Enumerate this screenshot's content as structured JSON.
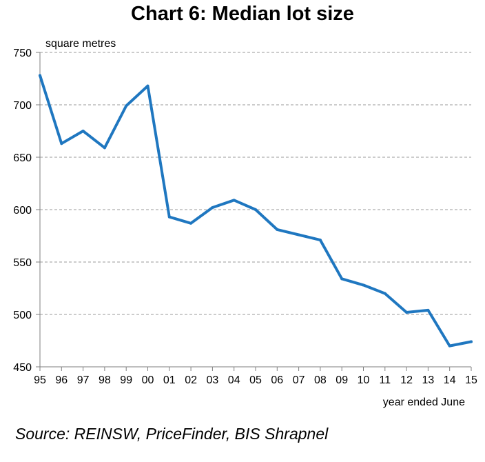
{
  "chart_data": {
    "type": "line",
    "title": "Chart 6: Median lot size",
    "ylabel": "square metres",
    "xlabel": "year ended June",
    "ylim": [
      450,
      750
    ],
    "yticks": [
      450,
      500,
      550,
      600,
      650,
      700,
      750
    ],
    "grid": true,
    "categories": [
      "95",
      "96",
      "97",
      "98",
      "99",
      "00",
      "01",
      "02",
      "03",
      "04",
      "05",
      "06",
      "07",
      "08",
      "09",
      "10",
      "11",
      "12",
      "13",
      "14",
      "15"
    ],
    "series": [
      {
        "values": [
          728,
          663,
          675,
          659,
          699,
          718,
          593,
          587,
          602,
          609,
          600,
          581,
          576,
          571,
          534,
          528,
          520,
          502,
          504,
          470,
          474
        ]
      }
    ],
    "source": "Source: REINSW, PriceFinder, BIS Shrapnel",
    "colors": {
      "line": "#1f77c0",
      "grid": "#9a9a9a",
      "axis": "#7f7f7f"
    }
  }
}
